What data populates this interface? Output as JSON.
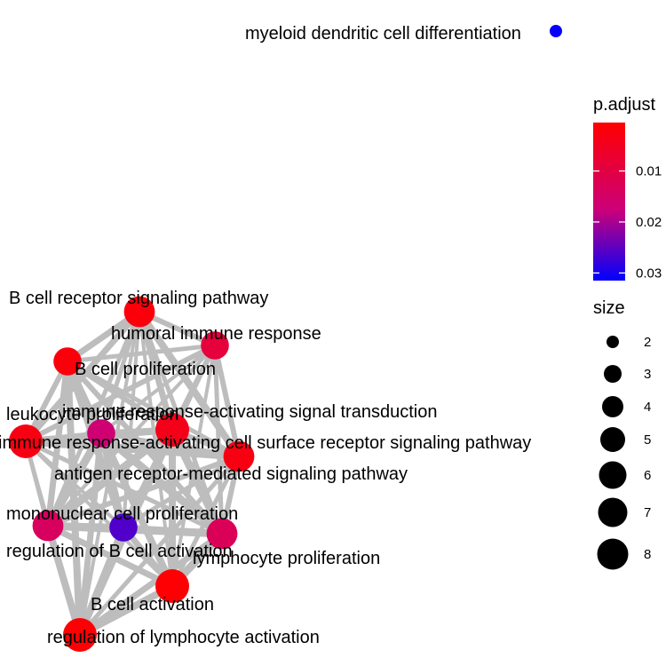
{
  "legend": {
    "color_title": "p.adjust",
    "color_ticks": [
      {
        "value": 0.01,
        "label": "0.01"
      },
      {
        "value": 0.02,
        "label": "0.02"
      },
      {
        "value": 0.03,
        "label": "0.03"
      }
    ],
    "color_range": [
      0.0005,
      0.0315
    ],
    "color_low": "#ff0000",
    "color_high": "#0000ff",
    "size_title": "size",
    "size_ticks": [
      {
        "value": 2,
        "label": "2"
      },
      {
        "value": 3,
        "label": "3"
      },
      {
        "value": 4,
        "label": "4"
      },
      {
        "value": 5,
        "label": "5"
      },
      {
        "value": 6,
        "label": "6"
      },
      {
        "value": 7,
        "label": "7"
      },
      {
        "value": 8,
        "label": "8"
      }
    ]
  },
  "nodes": [
    {
      "label": "myeloid dendritic cell differentiation",
      "size": 2,
      "p_adjust": 0.031
    },
    {
      "label": "B cell receptor signaling pathway",
      "size": 6,
      "p_adjust": 0.002
    },
    {
      "label": "humoral immune response",
      "size": 5,
      "p_adjust": 0.009
    },
    {
      "label": "B cell proliferation",
      "size": 5,
      "p_adjust": 0.002
    },
    {
      "label": "immune response-activating signal transduction",
      "size": 7,
      "p_adjust": 0.004
    },
    {
      "label": "leukocyte proliferation",
      "size": 5,
      "p_adjust": 0.017
    },
    {
      "label": "immune response-activating cell surface receptor signaling pathway",
      "size": 7,
      "p_adjust": 0.003
    },
    {
      "label": "antigen receptor-mediated signaling pathway",
      "size": 6,
      "p_adjust": 0.003
    },
    {
      "label": "mononuclear cell proliferation",
      "size": 6,
      "p_adjust": 0.014
    },
    {
      "label": "regulation of B cell activation",
      "size": 5,
      "p_adjust": 0.026
    },
    {
      "label": "lymphocyte proliferation",
      "size": 6,
      "p_adjust": 0.013
    },
    {
      "label": "B cell activation",
      "size": 7,
      "p_adjust": 0.001
    },
    {
      "label": "regulation of lymphocyte activation",
      "size": 7,
      "p_adjust": 0.001
    }
  ],
  "edge_color": "#bdbdbd"
}
